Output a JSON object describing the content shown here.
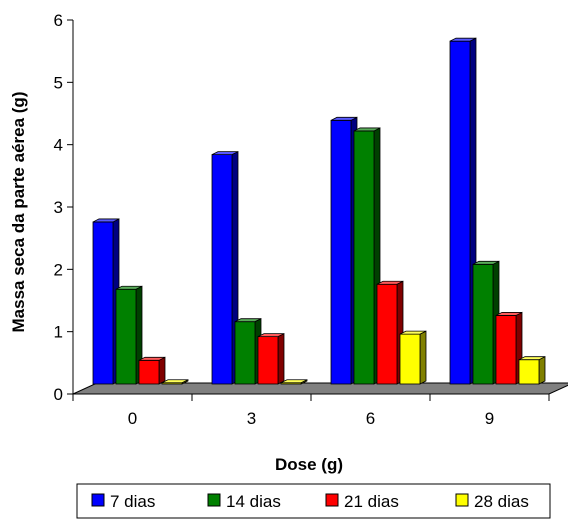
{
  "chart_data": {
    "type": "bar",
    "style": "3d-clustered-column",
    "categories": [
      "0",
      "3",
      "6",
      "9"
    ],
    "series": [
      {
        "name": "7 dias",
        "color": "#0000ff",
        "values": [
          2.6,
          3.68,
          4.23,
          5.5
        ]
      },
      {
        "name": "14 dias",
        "color": "#008000",
        "values": [
          1.52,
          1.0,
          4.06,
          1.92
        ]
      },
      {
        "name": "21 dias",
        "color": "#ff0000",
        "values": [
          0.38,
          0.76,
          1.6,
          1.1
        ]
      },
      {
        "name": "28 dias",
        "color": "#ffff00",
        "values": [
          0.02,
          0.02,
          0.8,
          0.39
        ]
      }
    ],
    "xlabel": "Dose (g)",
    "ylabel": "Massa seca da parte aérea (g)",
    "ylim": [
      0,
      6
    ],
    "yticks": [
      "0",
      "1",
      "2",
      "3",
      "4",
      "5",
      "6"
    ],
    "grid": false,
    "legend": "bottom",
    "floor_color": "#808080"
  }
}
